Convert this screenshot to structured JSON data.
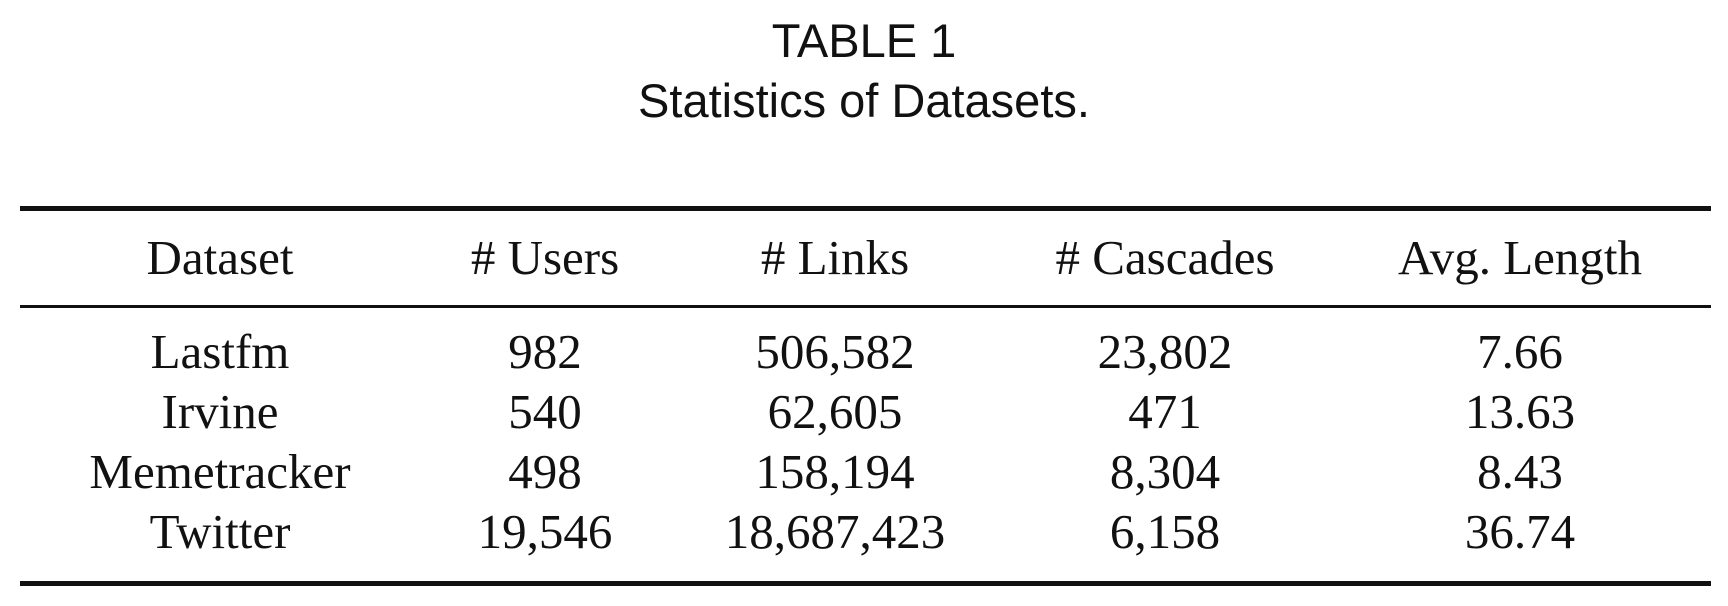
{
  "table": {
    "label": "TABLE 1",
    "title": "Statistics of Datasets.",
    "columns": [
      "Dataset",
      "# Users",
      "# Links",
      "# Cascades",
      "Avg. Length"
    ],
    "rows": [
      [
        "Lastfm",
        "982",
        "506,582",
        "23,802",
        "7.66"
      ],
      [
        "Irvine",
        "540",
        "62,605",
        "471",
        "13.63"
      ],
      [
        "Memetracker",
        "498",
        "158,194",
        "8,304",
        "8.43"
      ],
      [
        "Twitter",
        "19,546",
        "18,687,423",
        "6,158",
        "36.74"
      ]
    ]
  }
}
